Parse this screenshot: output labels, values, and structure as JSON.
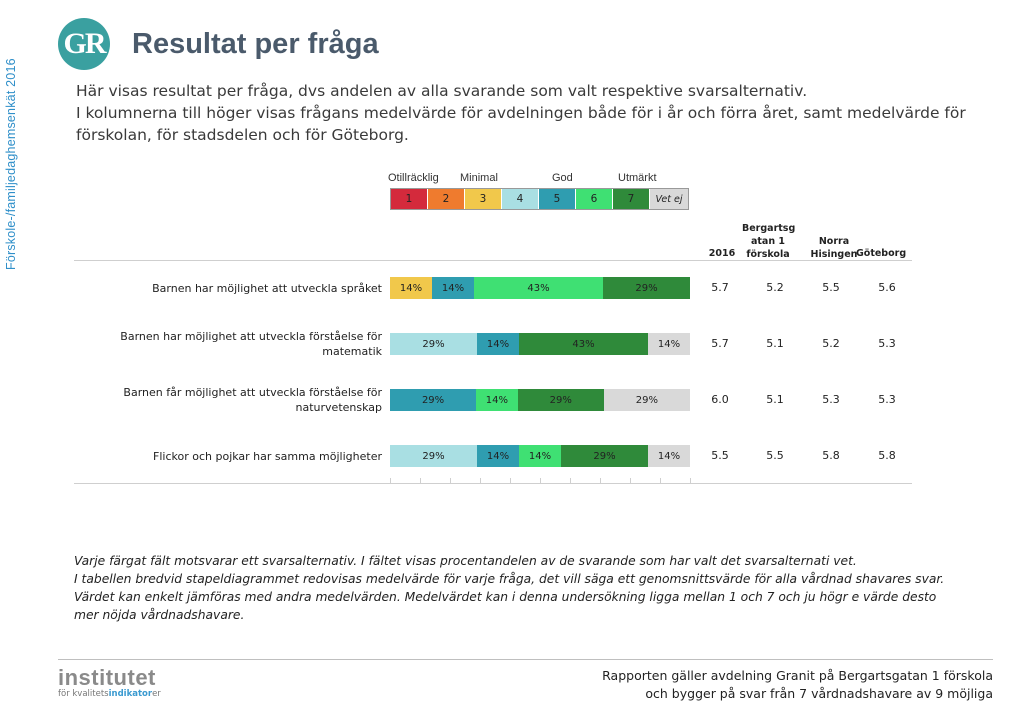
{
  "side_label": "Förskole-/familjedaghemsenkät 2016",
  "logo_text": "GR",
  "title": "Resultat per fråga",
  "intro": [
    "Här visas resultat per fråga, dvs andelen av alla svarande som valt respektive svarsalternativ.",
    "I kolumnerna till höger visas frågans medelvärde för avdelningen både för i år och förra året, samt medelvärde för förskolan, för stadsdelen och för Göteborg."
  ],
  "legend": {
    "labels": [
      "Otillräcklig",
      "Minimal",
      "God",
      "Utmärkt"
    ],
    "codes": [
      "1",
      "2",
      "3",
      "4",
      "5",
      "6",
      "7"
    ],
    "colors": [
      "#d42a3c",
      "#ef7b2e",
      "#f1c84b",
      "#a9dfe3",
      "#2f9db0",
      "#3fe073",
      "#2f8a3a"
    ],
    "vet_ej": "Vet ej",
    "vet_ej_color": "#d9d9d9"
  },
  "columns": {
    "year": "2016",
    "forskola": "Bergartsg atan 1 förskola",
    "stadsdel": "Norra Hisingen",
    "stad": "Göteborg"
  },
  "chart_data": {
    "type": "bar",
    "stacked": true,
    "orientation": "horizontal",
    "categories": [
      "Barnen har möjlighet att utveckla språket",
      "Barnen har möjlighet att utveckla förståelse för matematik",
      "Barnen får möjlighet att utveckla förståelse för naturvetenskap",
      "Flickor och pojkar har samma möjligheter"
    ],
    "series_order": [
      "3",
      "4",
      "5",
      "6",
      "7",
      "Vet ej"
    ],
    "rows": [
      {
        "segments": [
          {
            "code": "3",
            "value": 14,
            "label": "14%"
          },
          {
            "code": "5",
            "value": 14,
            "label": "14%"
          },
          {
            "code": "6",
            "value": 43,
            "label": "43%"
          },
          {
            "code": "7",
            "value": 29,
            "label": "29%"
          }
        ]
      },
      {
        "segments": [
          {
            "code": "4",
            "value": 29,
            "label": "29%"
          },
          {
            "code": "5",
            "value": 14,
            "label": "14%"
          },
          {
            "code": "7",
            "value": 43,
            "label": "43%"
          },
          {
            "code": "Vet ej",
            "value": 14,
            "label": "14%"
          }
        ]
      },
      {
        "segments": [
          {
            "code": "5",
            "value": 29,
            "label": "29%"
          },
          {
            "code": "6",
            "value": 14,
            "label": "14%"
          },
          {
            "code": "7",
            "value": 29,
            "label": "29%"
          },
          {
            "code": "Vet ej",
            "value": 29,
            "label": "29%"
          }
        ]
      },
      {
        "segments": [
          {
            "code": "4",
            "value": 29,
            "label": "29%"
          },
          {
            "code": "5",
            "value": 14,
            "label": "14%"
          },
          {
            "code": "6",
            "value": 14,
            "label": "14%"
          },
          {
            "code": "7",
            "value": 29,
            "label": "29%"
          },
          {
            "code": "Vet ej",
            "value": 14,
            "label": "14%"
          }
        ]
      }
    ],
    "averages": [
      [
        "5.7",
        "5.2",
        "5.5",
        "5.6"
      ],
      [
        "5.7",
        "5.1",
        "5.2",
        "5.3"
      ],
      [
        "6.0",
        "5.1",
        "5.3",
        "5.3"
      ],
      [
        "5.5",
        "5.5",
        "5.8",
        "5.8"
      ]
    ],
    "xlim": [
      0,
      100
    ]
  },
  "note": [
    "Varje färgat fält motsvarar ett svarsalternativ. I fältet visas procentandelen av de svarande som har valt det svarsalternati vet.",
    "I tabellen bredvid stapeldiagrammet redovisas medelvärde för varje fråga, det vill säga ett genomsnittsvärde för alla vårdnad shavares svar. Värdet kan enkelt jämföras med andra medelvärden. Medelvärdet kan i denna undersökning ligga mellan 1 och 7 och ju högr e värde desto mer nöjda vårdnadshavare."
  ],
  "institute": {
    "name": "institutet",
    "sub_prefix": "för kvalitets",
    "sub_highlight": "indikator",
    "sub_suffix": "er"
  },
  "footer": [
    "Rapporten gäller avdelning Granit  på Bergartsgatan 1 förskola",
    "och bygger på svar från 7 vårdnadshavare av 9 möjliga"
  ]
}
